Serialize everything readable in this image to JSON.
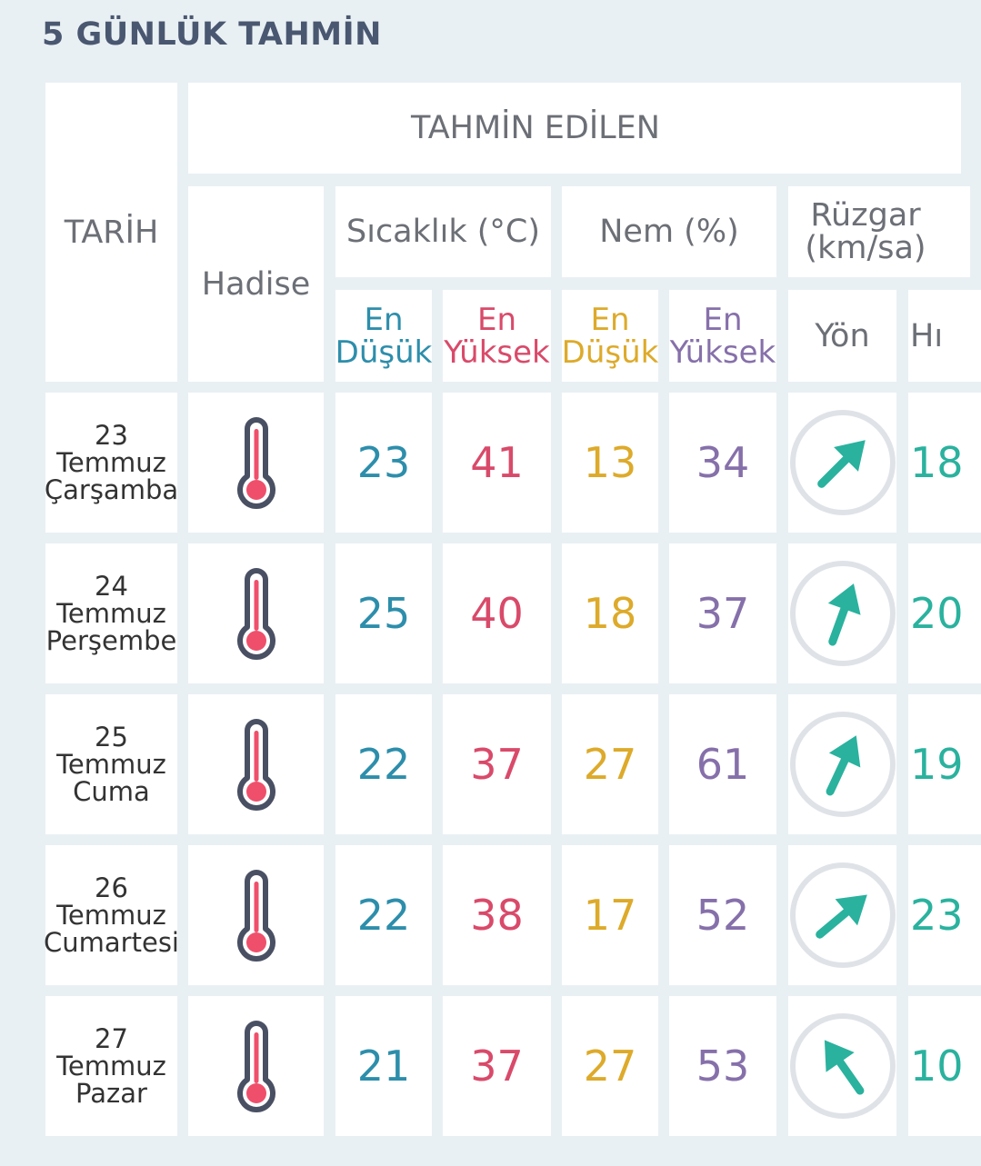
{
  "title": "5 GÜNLÜK TAHMİN",
  "header": {
    "date": "TARİH",
    "forecast": "TAHMİN EDİLEN",
    "event": "Hadise",
    "temperature": "Sıcaklık (°C)",
    "humidity": "Nem (%)",
    "wind_line1": "Rüzgar",
    "wind_line2": "(km/sa)",
    "min_line1": "En",
    "min_line2": "Düşük",
    "max_line1": "En",
    "max_line2": "Yüksek",
    "direction": "Yön",
    "speed": "Hı"
  },
  "colors": {
    "min_temp": "#2d8eab",
    "max_temp": "#d94a6a",
    "min_humidity": "#ddaa2a",
    "max_humidity": "#8670aa",
    "wind": "#2ab29e"
  },
  "icons": {
    "event": "thermometer-icon",
    "direction": "wind-direction-arrow-icon"
  },
  "rows": [
    {
      "day": "23",
      "month": "Temmuz",
      "weekday": "Çarşamba",
      "min_temp": "23",
      "max_temp": "41",
      "min_hum": "13",
      "max_hum": "34",
      "wind_angle": 225,
      "speed": "18"
    },
    {
      "day": "24",
      "month": "Temmuz",
      "weekday": "Perşembe",
      "min_temp": "25",
      "max_temp": "40",
      "min_hum": "18",
      "max_hum": "37",
      "wind_angle": 200,
      "speed": "20"
    },
    {
      "day": "25",
      "month": "Temmuz",
      "weekday": "Cuma",
      "min_temp": "22",
      "max_temp": "37",
      "min_hum": "27",
      "max_hum": "61",
      "wind_angle": 205,
      "speed": "19"
    },
    {
      "day": "26",
      "month": "Temmuz",
      "weekday": "Cumartesi",
      "min_temp": "22",
      "max_temp": "38",
      "min_hum": "17",
      "max_hum": "52",
      "wind_angle": 230,
      "speed": "23"
    },
    {
      "day": "27",
      "month": "Temmuz",
      "weekday": "Pazar",
      "min_temp": "21",
      "max_temp": "37",
      "min_hum": "27",
      "max_hum": "53",
      "wind_angle": 145,
      "speed": "10"
    }
  ]
}
